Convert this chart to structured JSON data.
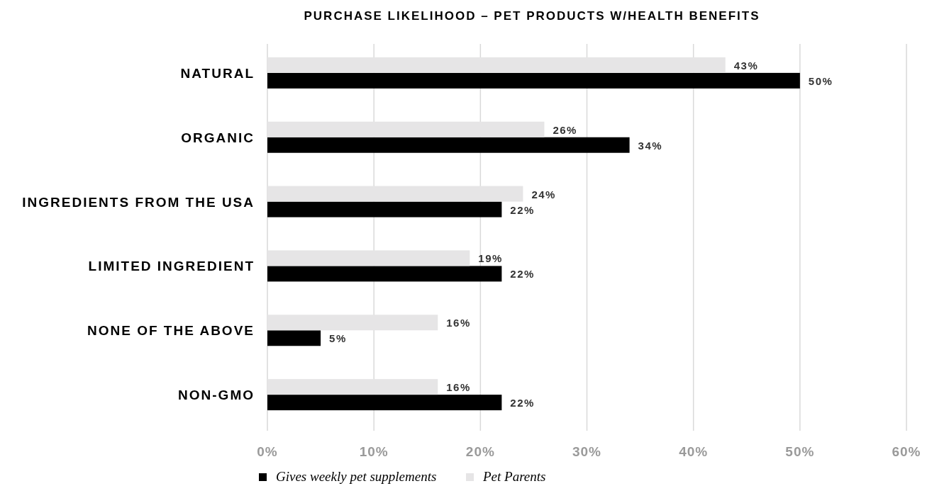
{
  "chart_data": {
    "type": "bar",
    "orientation": "horizontal",
    "title": "PURCHASE LIKELIHOOD – PET PRODUCTS W/HEALTH BENEFITS",
    "categories": [
      "NATURAL",
      "ORGANIC",
      "INGREDIENTS FROM THE USA",
      "LIMITED INGREDIENT",
      "NONE OF THE ABOVE",
      "NON-GMO"
    ],
    "series": [
      {
        "name": "Gives weekly pet supplements",
        "color": "#000000",
        "values": [
          50,
          34,
          22,
          22,
          5,
          22
        ],
        "value_labels": [
          "50%",
          "34%",
          "22%",
          "22%",
          "5%",
          "22%"
        ]
      },
      {
        "name": "Pet Parents",
        "color": "#e6e5e6",
        "values": [
          43,
          26,
          24,
          19,
          16,
          16
        ],
        "value_labels": [
          "43%",
          "26%",
          "24%",
          "19%",
          "16%",
          "16%"
        ]
      }
    ],
    "xlim": [
      0,
      60
    ],
    "xticks": [
      {
        "value": 0,
        "label": "0%"
      },
      {
        "value": 10,
        "label": "10%"
      },
      {
        "value": 20,
        "label": "20%"
      },
      {
        "value": 30,
        "label": "30%"
      },
      {
        "value": 40,
        "label": "40%"
      },
      {
        "value": 50,
        "label": "50%"
      },
      {
        "value": 60,
        "label": "60%"
      }
    ],
    "grid": "x",
    "legend": "bottom"
  }
}
